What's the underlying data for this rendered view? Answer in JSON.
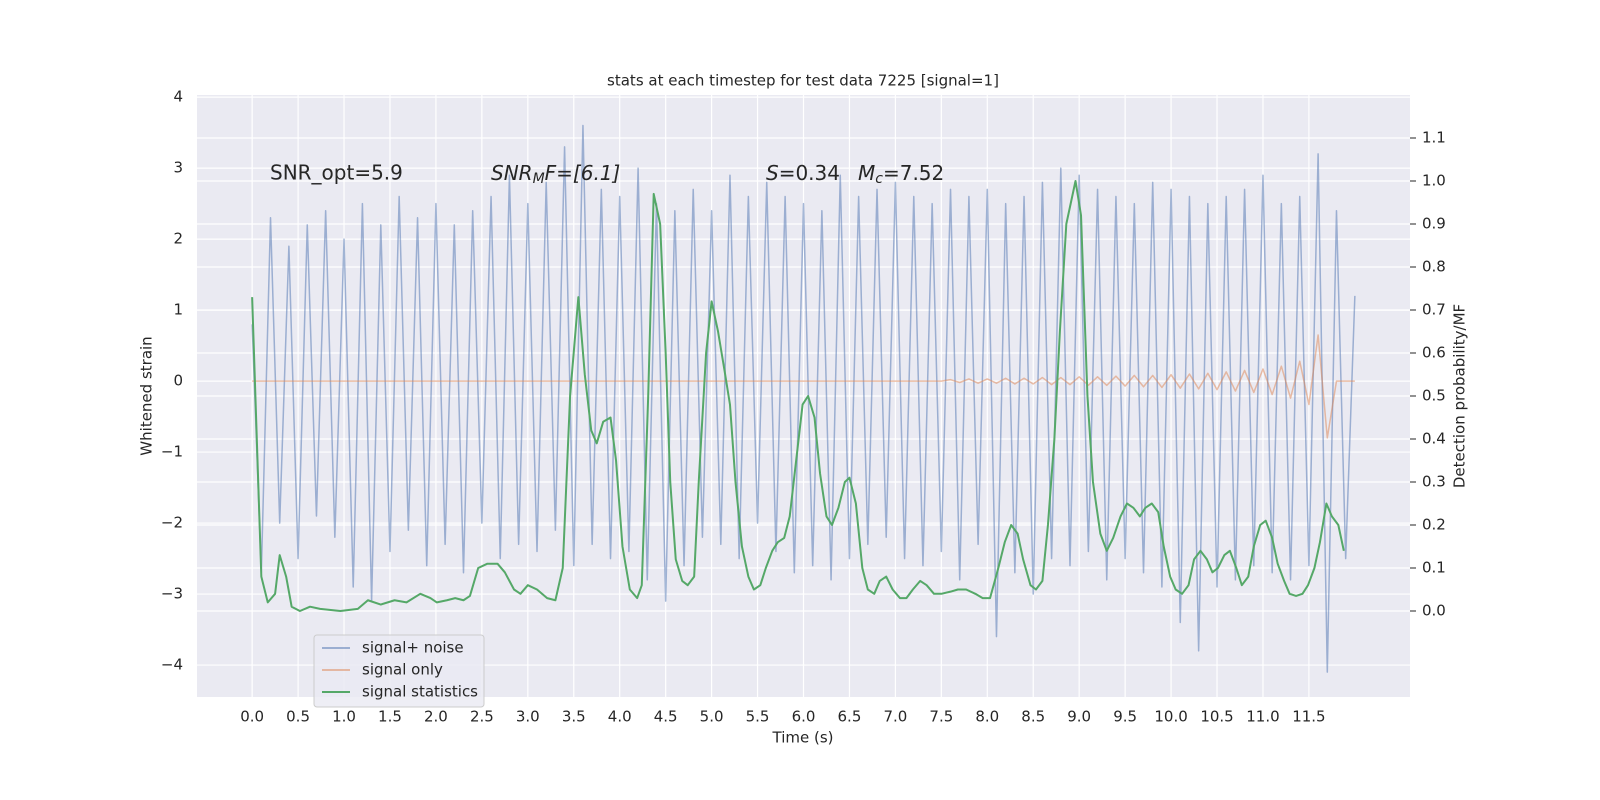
{
  "chart_data": {
    "type": "line",
    "title": "stats at each timestep for test data 7225 [signal=1]",
    "xlabel": "Time (s)",
    "ylabel": "Whitened strain",
    "y2label": "Detection probability/MF",
    "annotations": {
      "snr_opt": "SNR_opt=5.9",
      "snr_mf": [
        "SNR",
        "M",
        "F=[6.1]"
      ],
      "s": [
        "S",
        "=0.34"
      ],
      "mc": [
        "M",
        "c",
        "=7.52"
      ]
    },
    "xlim": [
      -0.6,
      12.6
    ],
    "ylim": [
      -4.45,
      4.03
    ],
    "y2lim": [
      -0.2,
      1.2
    ],
    "xticks": [
      {
        "value": 0,
        "label": "0.0"
      },
      {
        "value": 0.5,
        "label": "0.5"
      },
      {
        "value": 1,
        "label": "1.0"
      },
      {
        "value": 1.5,
        "label": "1.5"
      },
      {
        "value": 2,
        "label": "2.0"
      },
      {
        "value": 2.5,
        "label": "2.5"
      },
      {
        "value": 3,
        "label": "3.0"
      },
      {
        "value": 3.5,
        "label": "3.5"
      },
      {
        "value": 4,
        "label": "4.0"
      },
      {
        "value": 4.5,
        "label": "4.5"
      },
      {
        "value": 5,
        "label": "5.0"
      },
      {
        "value": 5.5,
        "label": "5.5"
      },
      {
        "value": 6,
        "label": "6.0"
      },
      {
        "value": 6.5,
        "label": "6.5"
      },
      {
        "value": 7,
        "label": "7.0"
      },
      {
        "value": 7.5,
        "label": "7.5"
      },
      {
        "value": 8,
        "label": "8.0"
      },
      {
        "value": 8.5,
        "label": "8.5"
      },
      {
        "value": 9,
        "label": "9.0"
      },
      {
        "value": 9.5,
        "label": "9.5"
      },
      {
        "value": 10,
        "label": "10.0"
      },
      {
        "value": 10.5,
        "label": "10.5"
      },
      {
        "value": 11,
        "label": "11.0"
      },
      {
        "value": 11.5,
        "label": "11.5"
      }
    ],
    "yticks": [
      {
        "value": -4,
        "label": "−4"
      },
      {
        "value": -3,
        "label": "−3"
      },
      {
        "value": -2,
        "label": "−2"
      },
      {
        "value": -1,
        "label": "−1"
      },
      0,
      1,
      2,
      3,
      4
    ],
    "y2ticks": [
      {
        "value": 0,
        "label": "0.0"
      },
      {
        "value": 0.1,
        "label": "0.1"
      },
      {
        "value": 0.2,
        "label": "0.2"
      },
      {
        "value": 0.3,
        "label": "0.3"
      },
      {
        "value": 0.4,
        "label": "0.4"
      },
      {
        "value": 0.5,
        "label": "0.5"
      },
      {
        "value": 0.6,
        "label": "0.6"
      },
      {
        "value": 0.7,
        "label": "0.7"
      },
      {
        "value": 0.8,
        "label": "0.8"
      },
      {
        "value": 0.9,
        "label": "0.9"
      },
      {
        "value": 1.0,
        "label": "1.0"
      },
      {
        "value": 1.1,
        "label": "1.1"
      }
    ],
    "grid": true,
    "legend": "lower left",
    "series": [
      {
        "name": "signal+ noise",
        "color": "#4c72b0",
        "alpha": 0.5,
        "x": [
          0,
          0.1,
          0.2,
          0.3,
          0.4,
          0.5,
          0.6,
          0.7,
          0.8,
          0.9,
          1,
          1.1,
          1.2,
          1.3,
          1.4,
          1.5,
          1.6,
          1.7,
          1.8,
          1.9,
          2,
          2.1,
          2.2,
          2.3,
          2.4,
          2.5,
          2.6,
          2.7,
          2.8,
          2.9,
          3,
          3.1,
          3.2,
          3.3,
          3.4,
          3.5,
          3.6,
          3.7,
          3.8,
          3.9,
          4,
          4.1,
          4.2,
          4.3,
          4.4,
          4.5,
          4.6,
          4.7,
          4.8,
          4.9,
          5,
          5.1,
          5.2,
          5.3,
          5.4,
          5.5,
          5.6,
          5.7,
          5.8,
          5.9,
          6,
          6.1,
          6.2,
          6.3,
          6.4,
          6.5,
          6.6,
          6.7,
          6.8,
          6.9,
          7,
          7.1,
          7.2,
          7.3,
          7.4,
          7.5,
          7.6,
          7.7,
          7.8,
          7.9,
          8,
          8.1,
          8.2,
          8.3,
          8.4,
          8.5,
          8.6,
          8.7,
          8.8,
          8.9,
          9,
          9.1,
          9.2,
          9.3,
          9.4,
          9.5,
          9.6,
          9.7,
          9.8,
          9.9,
          10,
          10.1,
          10.2,
          10.3,
          10.4,
          10.5,
          10.6,
          10.7,
          10.8,
          10.9,
          11,
          11.1,
          11.2,
          11.3,
          11.4,
          11.5,
          11.6,
          11.7,
          11.8,
          11.9,
          12
        ],
        "values": [
          0.8,
          -2.7,
          2.3,
          -2.0,
          1.9,
          -2.5,
          2.2,
          -1.9,
          2.4,
          -2.2,
          2.0,
          -2.9,
          2.5,
          -3.1,
          2.2,
          -2.4,
          2.6,
          -2.1,
          2.3,
          -2.6,
          2.5,
          -2.3,
          2.2,
          -2.7,
          2.4,
          -2.0,
          2.6,
          -2.5,
          2.9,
          -2.3,
          2.5,
          -2.4,
          2.8,
          -2.1,
          3.3,
          -2.6,
          3.6,
          -2.3,
          2.7,
          -2.5,
          2.6,
          -2.4,
          3.0,
          -2.8,
          2.5,
          -3.1,
          2.4,
          -2.6,
          2.7,
          -2.2,
          2.4,
          -2.3,
          2.9,
          -2.5,
          2.6,
          -2.0,
          2.8,
          -2.4,
          2.6,
          -2.7,
          2.5,
          -2.6,
          2.4,
          -2.8,
          2.9,
          -2.5,
          2.6,
          -2.3,
          2.7,
          -2.2,
          2.8,
          -2.5,
          2.6,
          -2.6,
          2.5,
          -2.4,
          2.7,
          -2.8,
          2.6,
          -2.3,
          2.7,
          -3.6,
          2.5,
          -2.7,
          2.6,
          -3.0,
          2.8,
          -2.5,
          3.0,
          -2.6,
          2.9,
          -2.4,
          2.7,
          -2.8,
          2.6,
          -2.5,
          2.5,
          -2.7,
          2.8,
          -2.9,
          2.7,
          -3.4,
          2.6,
          -3.8,
          2.5,
          -2.9,
          2.6,
          -2.8,
          2.7,
          -2.6,
          2.9,
          -2.7,
          2.5,
          -2.8,
          2.6,
          -2.6,
          3.2,
          -4.1,
          2.4,
          -2.5,
          1.2
        ]
      },
      {
        "name": "signal only",
        "color": "#dd8452",
        "alpha": 0.5,
        "x": [
          0,
          7.5,
          7.6,
          7.7,
          7.8,
          7.9,
          8,
          8.1,
          8.2,
          8.3,
          8.4,
          8.5,
          8.6,
          8.7,
          8.8,
          8.9,
          9,
          9.1,
          9.2,
          9.3,
          9.4,
          9.5,
          9.6,
          9.7,
          9.8,
          9.9,
          10,
          10.1,
          10.2,
          10.3,
          10.4,
          10.5,
          10.6,
          10.7,
          10.8,
          10.9,
          11,
          11.1,
          11.2,
          11.3,
          11.4,
          11.5,
          11.6,
          11.7,
          11.8,
          12
        ],
        "values": [
          0,
          0,
          0.02,
          -0.02,
          0.03,
          -0.03,
          0.03,
          -0.03,
          0.04,
          -0.04,
          0.04,
          -0.04,
          0.05,
          -0.05,
          0.05,
          -0.05,
          0.06,
          -0.06,
          0.06,
          -0.06,
          0.07,
          -0.07,
          0.08,
          -0.08,
          0.08,
          -0.09,
          0.09,
          -0.1,
          0.1,
          -0.11,
          0.11,
          -0.12,
          0.13,
          -0.14,
          0.15,
          -0.16,
          0.17,
          -0.19,
          0.21,
          -0.24,
          0.28,
          -0.33,
          0.65,
          -0.8,
          0,
          0
        ]
      },
      {
        "name": "signal statistics",
        "color": "#55a868",
        "alpha": 1,
        "axis": "y2",
        "x": [
          0,
          0.1,
          0.17,
          0.25,
          0.3,
          0.37,
          0.43,
          0.52,
          0.63,
          0.74,
          0.96,
          1.15,
          1.26,
          1.4,
          1.55,
          1.68,
          1.83,
          1.94,
          2.01,
          2.12,
          2.21,
          2.3,
          2.37,
          2.46,
          2.56,
          2.67,
          2.75,
          2.85,
          2.92,
          3.0,
          3.1,
          3.21,
          3.3,
          3.38,
          3.46,
          3.55,
          3.62,
          3.69,
          3.75,
          3.82,
          3.9,
          3.96,
          4.03,
          4.11,
          4.19,
          4.24,
          4.31,
          4.37,
          4.44,
          4.5,
          4.55,
          4.61,
          4.68,
          4.74,
          4.81,
          4.86,
          4.94,
          5.0,
          5.07,
          5.14,
          5.2,
          5.26,
          5.33,
          5.4,
          5.46,
          5.53,
          5.59,
          5.66,
          5.72,
          5.79,
          5.85,
          5.92,
          5.99,
          6.05,
          6.12,
          6.18,
          6.25,
          6.31,
          6.38,
          6.45,
          6.5,
          6.57,
          6.64,
          6.7,
          6.77,
          6.83,
          6.9,
          6.97,
          7.05,
          7.12,
          7.19,
          7.27,
          7.34,
          7.42,
          7.5,
          7.6,
          7.68,
          7.77,
          7.87,
          7.95,
          8.03,
          8.12,
          8.19,
          8.26,
          8.33,
          8.39,
          8.47,
          8.53,
          8.6,
          8.66,
          8.73,
          8.79,
          8.86,
          8.96,
          9.02,
          9.09,
          9.15,
          9.23,
          9.3,
          9.37,
          9.45,
          9.52,
          9.59,
          9.66,
          9.72,
          9.79,
          9.86,
          9.92,
          9.99,
          10.05,
          10.12,
          10.19,
          10.25,
          10.32,
          10.39,
          10.45,
          10.51,
          10.58,
          10.64,
          10.71,
          10.77,
          10.84,
          10.9,
          10.97,
          11.03,
          11.1,
          11.16,
          11.23,
          11.29,
          11.36,
          11.43,
          11.49,
          11.56,
          11.62,
          11.69,
          11.75,
          11.82,
          11.88
        ],
        "values": [
          0.73,
          0.08,
          0.02,
          0.04,
          0.13,
          0.08,
          0.01,
          0,
          0.01,
          0.005,
          0,
          0.005,
          0.025,
          0.015,
          0.025,
          0.02,
          0.04,
          0.03,
          0.02,
          0.025,
          0.03,
          0.025,
          0.035,
          0.1,
          0.11,
          0.11,
          0.09,
          0.05,
          0.04,
          0.06,
          0.05,
          0.03,
          0.025,
          0.1,
          0.5,
          0.73,
          0.55,
          0.42,
          0.39,
          0.44,
          0.45,
          0.35,
          0.15,
          0.05,
          0.03,
          0.06,
          0.5,
          0.97,
          0.9,
          0.6,
          0.3,
          0.12,
          0.07,
          0.06,
          0.08,
          0.3,
          0.6,
          0.72,
          0.65,
          0.56,
          0.48,
          0.3,
          0.15,
          0.08,
          0.05,
          0.06,
          0.1,
          0.14,
          0.16,
          0.17,
          0.22,
          0.35,
          0.48,
          0.5,
          0.45,
          0.32,
          0.22,
          0.2,
          0.24,
          0.3,
          0.31,
          0.25,
          0.1,
          0.05,
          0.04,
          0.07,
          0.08,
          0.05,
          0.03,
          0.03,
          0.05,
          0.07,
          0.06,
          0.04,
          0.04,
          0.045,
          0.05,
          0.05,
          0.04,
          0.03,
          0.03,
          0.1,
          0.16,
          0.2,
          0.18,
          0.12,
          0.06,
          0.05,
          0.07,
          0.2,
          0.4,
          0.65,
          0.9,
          1.0,
          0.92,
          0.5,
          0.3,
          0.18,
          0.14,
          0.17,
          0.22,
          0.25,
          0.24,
          0.22,
          0.24,
          0.25,
          0.23,
          0.15,
          0.08,
          0.05,
          0.04,
          0.06,
          0.12,
          0.14,
          0.12,
          0.09,
          0.1,
          0.13,
          0.14,
          0.1,
          0.06,
          0.08,
          0.15,
          0.2,
          0.21,
          0.17,
          0.11,
          0.07,
          0.04,
          0.035,
          0.04,
          0.06,
          0.1,
          0.16,
          0.25,
          0.22,
          0.2,
          0.14
        ]
      }
    ]
  }
}
